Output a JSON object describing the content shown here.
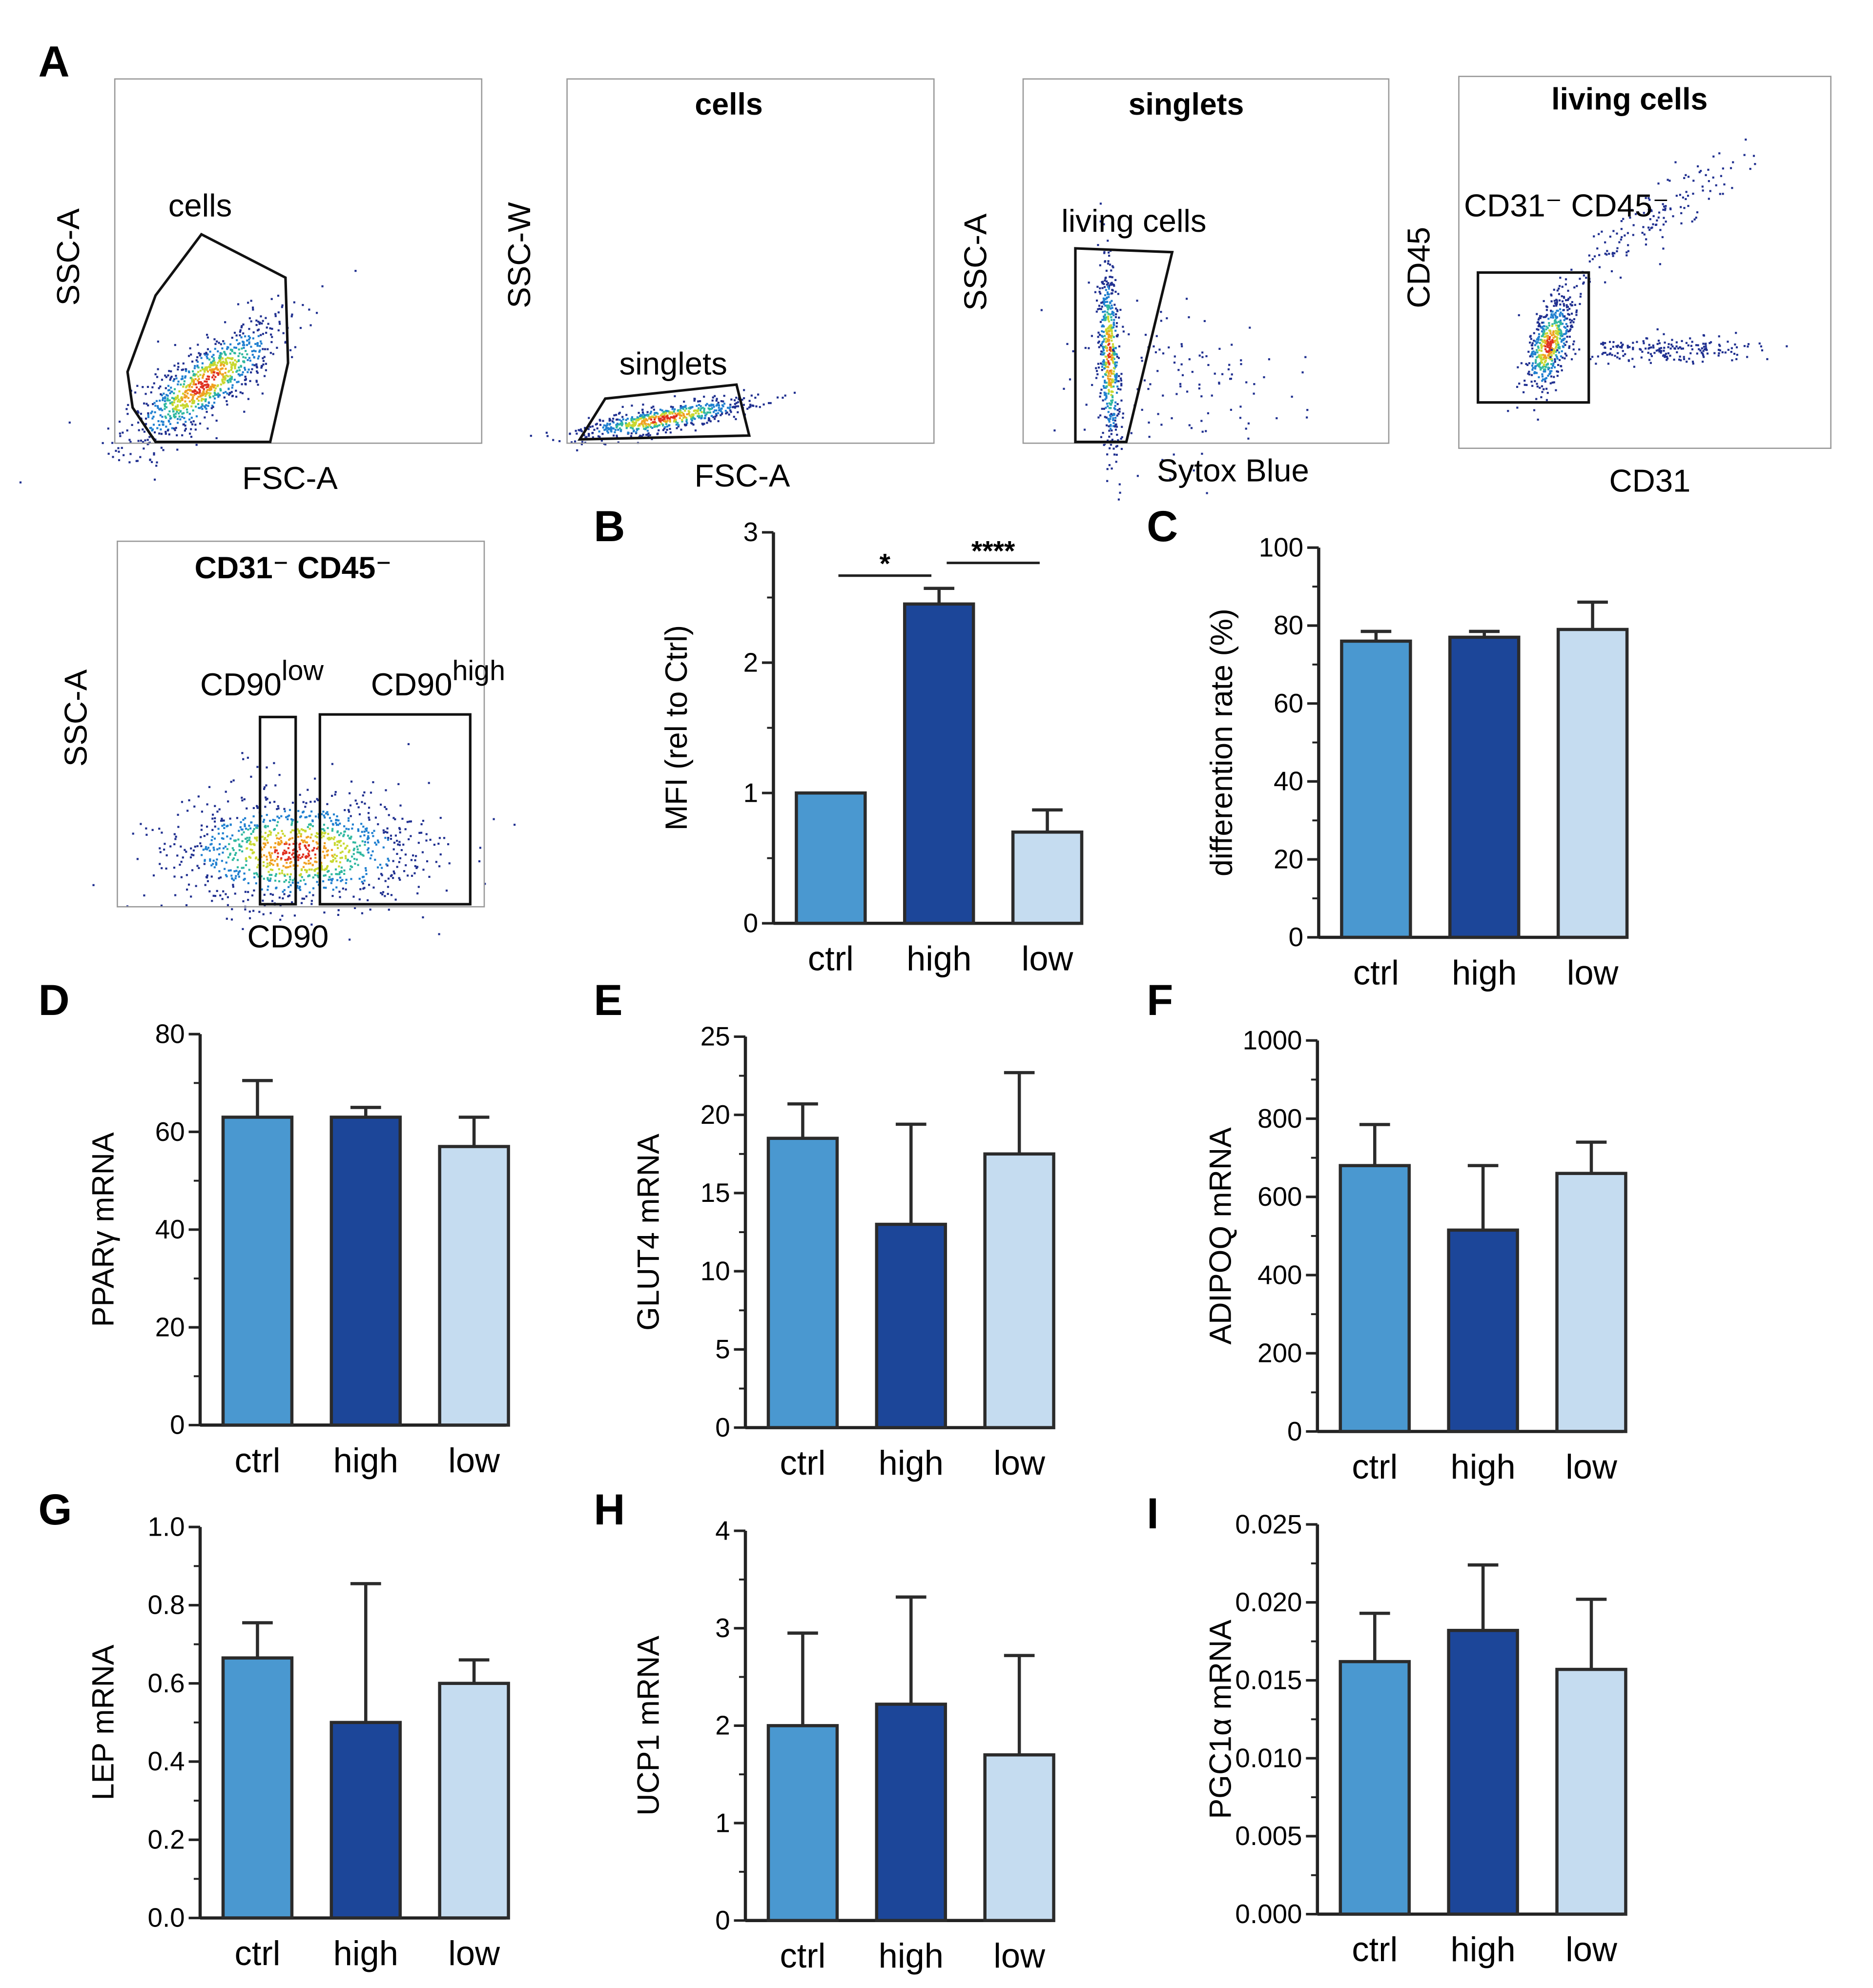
{
  "panel_letters": [
    "A",
    "B",
    "C",
    "D",
    "E",
    "F",
    "G",
    "H",
    "I"
  ],
  "colors": {
    "ctrl": "#4a98d0",
    "high": "#1c4699",
    "low": "#c5dcf0",
    "outline": "#2b2b2b"
  },
  "flow_panels": [
    {
      "title": "",
      "xlabel": "FSC-A",
      "ylabel": "SSC-A",
      "gate": "cells"
    },
    {
      "title": "cells",
      "xlabel": "FSC-A",
      "ylabel": "SSC-W",
      "gate": "singlets"
    },
    {
      "title": "singlets",
      "xlabel": "Sytox Blue",
      "ylabel": "SSC-A",
      "gate": "living cells"
    },
    {
      "title": "living cells",
      "xlabel": "CD31",
      "ylabel": "CD45",
      "gate": "CD31⁻ CD45⁻"
    },
    {
      "title": "CD31⁻ CD45⁻",
      "xlabel": "CD90",
      "ylabel": "SSC-A",
      "gate_low": "CD90",
      "gate_low_sup": "low",
      "gate_high": "CD90",
      "gate_high_sup": "high"
    }
  ],
  "chart_data": [
    {
      "id": "B",
      "type": "bar",
      "categories": [
        "ctrl",
        "high",
        "low"
      ],
      "values": [
        1.0,
        2.45,
        0.7
      ],
      "errors": [
        0,
        0.12,
        0.17
      ],
      "ylabel": "MFI (rel to Ctrl)",
      "ylim": [
        0,
        3
      ],
      "yticks": [
        "0",
        "1",
        "2",
        "3"
      ],
      "significance": [
        {
          "pair": [
            "ctrl",
            "high"
          ],
          "label": "*"
        },
        {
          "pair": [
            "high",
            "low"
          ],
          "label": "****"
        }
      ]
    },
    {
      "id": "C",
      "type": "bar",
      "categories": [
        "ctrl",
        "high",
        "low"
      ],
      "values": [
        76,
        77,
        79
      ],
      "errors": [
        2.5,
        1.5,
        7
      ],
      "ylabel": "differention rate (%)",
      "ylim": [
        0,
        100
      ],
      "yticks": [
        "0",
        "20",
        "40",
        "60",
        "80",
        "100"
      ]
    },
    {
      "id": "D",
      "type": "bar",
      "categories": [
        "ctrl",
        "high",
        "low"
      ],
      "values": [
        63,
        63,
        57
      ],
      "errors": [
        7.5,
        2,
        6
      ],
      "ylabel": "PPARγ mRNA",
      "ylim": [
        0,
        80
      ],
      "yticks": [
        "0",
        "20",
        "40",
        "60",
        "80"
      ]
    },
    {
      "id": "E",
      "type": "bar",
      "categories": [
        "ctrl",
        "high",
        "low"
      ],
      "values": [
        18.5,
        13,
        17.5
      ],
      "errors": [
        2.2,
        6.4,
        5.2
      ],
      "ylabel": "GLUT4 mRNA",
      "ylim": [
        0,
        25
      ],
      "yticks": [
        "0",
        "5",
        "10",
        "15",
        "20",
        "25"
      ]
    },
    {
      "id": "F",
      "type": "bar",
      "categories": [
        "ctrl",
        "high",
        "low"
      ],
      "values": [
        680,
        515,
        660
      ],
      "errors": [
        105,
        165,
        80
      ],
      "ylabel": "ADIPOQ mRNA",
      "ylim": [
        0,
        1000
      ],
      "yticks": [
        "0",
        "200",
        "400",
        "600",
        "800",
        "1000"
      ]
    },
    {
      "id": "G",
      "type": "bar",
      "categories": [
        "ctrl",
        "high",
        "low"
      ],
      "values": [
        0.665,
        0.5,
        0.6
      ],
      "errors": [
        0.09,
        0.355,
        0.06
      ],
      "ylabel": "LEP mRNA",
      "ylim": [
        0,
        1
      ],
      "yticks": [
        "0.0",
        "0.2",
        "0.4",
        "0.6",
        "0.8",
        "1.0"
      ]
    },
    {
      "id": "H",
      "type": "bar",
      "categories": [
        "ctrl",
        "high",
        "low"
      ],
      "values": [
        2.0,
        2.22,
        1.7
      ],
      "errors": [
        0.95,
        1.1,
        1.02
      ],
      "ylabel": "UCP1 mRNA",
      "ylim": [
        0,
        4
      ],
      "yticks": [
        "0",
        "1",
        "2",
        "3",
        "4"
      ]
    },
    {
      "id": "I",
      "type": "bar",
      "categories": [
        "ctrl",
        "high",
        "low"
      ],
      "values": [
        0.0162,
        0.0182,
        0.0157
      ],
      "errors": [
        0.0031,
        0.0042,
        0.0045
      ],
      "ylabel": "PGC1α mRNA",
      "ylim": [
        0,
        0.025
      ],
      "yticks": [
        "0.000",
        "0.005",
        "0.010",
        "0.015",
        "0.020",
        "0.025"
      ]
    }
  ]
}
